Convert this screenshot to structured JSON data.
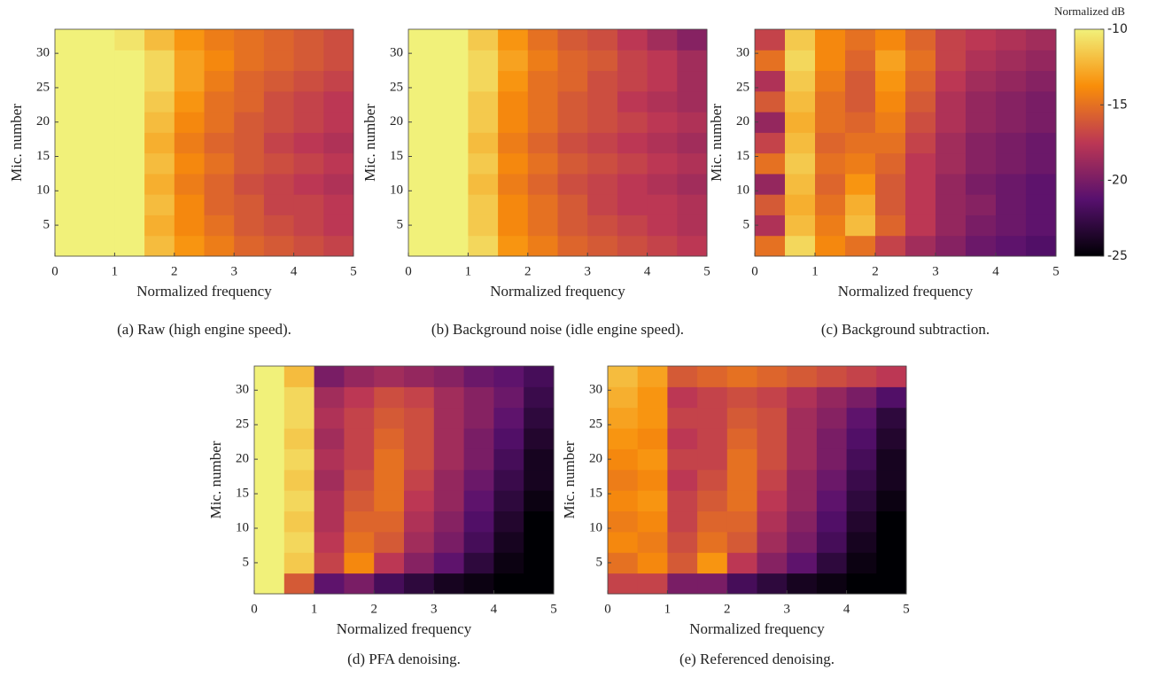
{
  "chart_data": [
    {
      "type": "heatmap",
      "caption": "(a)  Raw (high engine speed).",
      "xlabel": "Normalized frequency",
      "ylabel": "Mic. number",
      "xlim": [
        0,
        5
      ],
      "xticks": [
        0,
        1,
        2,
        3,
        4,
        5
      ],
      "ylim": [
        0.5,
        33.5
      ],
      "yticks": [
        5,
        10,
        15,
        20,
        25,
        30
      ],
      "xbins": [
        0,
        0.5,
        1,
        1.5,
        2,
        2.5,
        3,
        3.5,
        4,
        4.5,
        5
      ],
      "ybins": [
        0.5,
        3.5,
        6.5,
        9.5,
        12.5,
        15.5,
        18.5,
        21.5,
        24.5,
        27.5,
        30.5,
        33.5
      ],
      "z": [
        [
          -10,
          -10,
          -10,
          -12,
          -13.5,
          -14.5,
          -15.5,
          -16,
          -16.5,
          -17
        ],
        [
          -10,
          -10,
          -10,
          -12.5,
          -14,
          -15,
          -16,
          -16.5,
          -17,
          -17.5
        ],
        [
          -10,
          -10,
          -10,
          -12,
          -14,
          -15.5,
          -16,
          -17,
          -17,
          -17.5
        ],
        [
          -10,
          -10,
          -10,
          -12.5,
          -14.5,
          -15.5,
          -16.5,
          -17,
          -17.5,
          -18
        ],
        [
          -10,
          -10,
          -10,
          -12,
          -14,
          -15,
          -16,
          -16.5,
          -17,
          -17.5
        ],
        [
          -10,
          -10,
          -10,
          -12.5,
          -14.5,
          -15.5,
          -16,
          -17,
          -17.5,
          -18
        ],
        [
          -10,
          -10,
          -10,
          -12,
          -14,
          -15,
          -16,
          -16.5,
          -17,
          -17.5
        ],
        [
          -10,
          -10,
          -10,
          -11.5,
          -13.5,
          -15,
          -15.5,
          -16.5,
          -17,
          -17.5
        ],
        [
          -10,
          -10,
          -10,
          -11,
          -13,
          -14.5,
          -15.5,
          -16,
          -16.5,
          -17
        ],
        [
          -10,
          -10,
          -10,
          -11,
          -13,
          -14,
          -15,
          -15.5,
          -16,
          -16.5
        ],
        [
          -10,
          -10,
          -10.5,
          -12,
          -13.5,
          -14.5,
          -15,
          -15.5,
          -16,
          -16.5
        ]
      ]
    },
    {
      "type": "heatmap",
      "caption": "(b) Background noise (idle engine speed).",
      "xlabel": "Normalized frequency",
      "ylabel": "Mic. number",
      "xlim": [
        0,
        5
      ],
      "xticks": [
        0,
        1,
        2,
        3,
        4,
        5
      ],
      "ylim": [
        0.5,
        33.5
      ],
      "yticks": [
        5,
        10,
        15,
        20,
        25,
        30
      ],
      "xbins": [
        0,
        0.5,
        1,
        1.5,
        2,
        2.5,
        3,
        3.5,
        4,
        4.5,
        5
      ],
      "ybins": [
        0.5,
        3.5,
        6.5,
        9.5,
        12.5,
        15.5,
        18.5,
        21.5,
        24.5,
        27.5,
        30.5,
        33.5
      ],
      "z": [
        [
          -10,
          -10,
          -11,
          -13.5,
          -14.5,
          -15.5,
          -16,
          -16.5,
          -17,
          -17.5
        ],
        [
          -10,
          -10,
          -11.5,
          -14,
          -15,
          -16,
          -16.5,
          -17,
          -17.5,
          -18
        ],
        [
          -10,
          -10,
          -11.5,
          -14,
          -15,
          -16,
          -17,
          -17.5,
          -17.5,
          -18
        ],
        [
          -10,
          -10,
          -12,
          -14.5,
          -15.5,
          -16.5,
          -17,
          -17.5,
          -18,
          -18.5
        ],
        [
          -10,
          -10,
          -11.5,
          -14,
          -15,
          -16,
          -16.5,
          -17,
          -17.5,
          -18
        ],
        [
          -10,
          -10,
          -12,
          -14.5,
          -15.5,
          -16.5,
          -17,
          -17.5,
          -18,
          -18.5
        ],
        [
          -10,
          -10,
          -11.5,
          -14,
          -15,
          -16,
          -16.5,
          -17,
          -17.5,
          -18
        ],
        [
          -10,
          -10,
          -11.5,
          -14,
          -15,
          -16,
          -16.5,
          -17.5,
          -18,
          -18.5
        ],
        [
          -10,
          -10,
          -11,
          -13.5,
          -15,
          -15.5,
          -16.5,
          -17,
          -17.5,
          -18.5
        ],
        [
          -10,
          -10,
          -11,
          -13,
          -14.5,
          -15.5,
          -16,
          -17,
          -17.5,
          -18.5
        ],
        [
          -10,
          -10,
          -11.5,
          -13.5,
          -15,
          -16,
          -16.5,
          -17.5,
          -18.5,
          -19.5
        ]
      ]
    },
    {
      "type": "heatmap",
      "caption": "(c) Background subtraction.",
      "xlabel": "Normalized frequency",
      "ylabel": "Mic. number",
      "xlim": [
        0,
        5
      ],
      "xticks": [
        0,
        1,
        2,
        3,
        4,
        5
      ],
      "ylim": [
        0.5,
        33.5
      ],
      "yticks": [
        5,
        10,
        15,
        20,
        25,
        30
      ],
      "xbins": [
        0,
        0.5,
        1,
        1.5,
        2,
        2.5,
        3,
        3.5,
        4,
        4.5,
        5
      ],
      "ybins": [
        0.5,
        3.5,
        6.5,
        9.5,
        12.5,
        15.5,
        18.5,
        21.5,
        24.5,
        27.5,
        30.5,
        33.5
      ],
      "z": [
        [
          -15,
          -11,
          -14,
          -15,
          -17,
          -18.5,
          -19.5,
          -20.5,
          -21,
          -21.5
        ],
        [
          -18,
          -12,
          -14.5,
          -12,
          -15.5,
          -17.5,
          -19,
          -20,
          -20.5,
          -21
        ],
        [
          -16,
          -12.5,
          -15,
          -12.5,
          -16,
          -17.5,
          -19,
          -19.5,
          -20.5,
          -21
        ],
        [
          -19,
          -12,
          -15.5,
          -13.5,
          -16,
          -17.5,
          -19,
          -20,
          -20.5,
          -21
        ],
        [
          -15,
          -11.5,
          -15,
          -14.5,
          -15.5,
          -17.5,
          -18.5,
          -19.5,
          -20,
          -20.5
        ],
        [
          -17,
          -12,
          -15.5,
          -15,
          -15,
          -17,
          -18.5,
          -19.5,
          -20,
          -20.5
        ],
        [
          -19,
          -12.5,
          -15,
          -15.5,
          -14.5,
          -16.5,
          -18,
          -19,
          -19.5,
          -20
        ],
        [
          -16,
          -12,
          -15,
          -16,
          -14,
          -16,
          -18,
          -19,
          -19.5,
          -20
        ],
        [
          -18,
          -11.5,
          -14.5,
          -16,
          -13.5,
          -15.5,
          -17.5,
          -18.5,
          -19,
          -19.5
        ],
        [
          -15,
          -11,
          -14,
          -15.5,
          -13,
          -15,
          -17,
          -18,
          -18.5,
          -19
        ],
        [
          -17,
          -11.5,
          -14,
          -15,
          -14,
          -15.5,
          -17,
          -17.5,
          -18,
          -18.5
        ]
      ],
      "colorbar": {
        "label": "Normalized dB",
        "clim": [
          -25,
          -10
        ],
        "ticks": [
          -10,
          -15,
          -20,
          -25
        ]
      }
    },
    {
      "type": "heatmap",
      "caption": "(d) PFA denoising.",
      "xlabel": "Normalized frequency",
      "ylabel": "Mic. number",
      "xlim": [
        0,
        5
      ],
      "xticks": [
        0,
        1,
        2,
        3,
        4,
        5
      ],
      "ylim": [
        0.5,
        33.5
      ],
      "yticks": [
        5,
        10,
        15,
        20,
        25,
        30
      ],
      "xbins": [
        0,
        0.5,
        1,
        1.5,
        2,
        2.5,
        3,
        3.5,
        4,
        4.5,
        5
      ],
      "ybins": [
        0.5,
        3.5,
        6.5,
        9.5,
        12.5,
        15.5,
        18.5,
        21.5,
        24.5,
        27.5,
        30.5,
        33.5
      ],
      "z": [
        [
          -10,
          -16,
          -21,
          -20,
          -22,
          -23,
          -24,
          -24.5,
          -25,
          -25
        ],
        [
          -10,
          -11.5,
          -17,
          -14,
          -17.5,
          -19.5,
          -21,
          -23,
          -24.5,
          -25
        ],
        [
          -10,
          -11,
          -17.5,
          -15,
          -16,
          -18.5,
          -20,
          -22,
          -24,
          -25
        ],
        [
          -10,
          -11.5,
          -18,
          -15.5,
          -15.5,
          -18,
          -19.5,
          -21.5,
          -23.5,
          -25
        ],
        [
          -10,
          -11,
          -18,
          -16,
          -15,
          -17.5,
          -19,
          -21,
          -23,
          -24.5
        ],
        [
          -10,
          -11.5,
          -18.5,
          -16.5,
          -15,
          -17,
          -19,
          -20.5,
          -22.5,
          -24
        ],
        [
          -10,
          -11,
          -18,
          -17,
          -15,
          -16.5,
          -18.5,
          -20,
          -22,
          -24
        ],
        [
          -10,
          -11.5,
          -18.5,
          -17,
          -15.5,
          -16.5,
          -18.5,
          -20,
          -21.5,
          -23.5
        ],
        [
          -10,
          -11,
          -18,
          -17,
          -16,
          -16.5,
          -18.5,
          -19.5,
          -21,
          -23
        ],
        [
          -10,
          -11,
          -18.5,
          -17.5,
          -16.5,
          -17,
          -18.5,
          -19.5,
          -20.5,
          -22.5
        ],
        [
          -10,
          -12,
          -20,
          -19,
          -18.5,
          -19,
          -19.5,
          -20.5,
          -21,
          -22
        ]
      ]
    },
    {
      "type": "heatmap",
      "caption": "(e) Referenced denoising.",
      "xlabel": "Normalized frequency",
      "ylabel": "Mic. number",
      "xlim": [
        0,
        5
      ],
      "xticks": [
        0,
        1,
        2,
        3,
        4,
        5
      ],
      "ylim": [
        0.5,
        33.5
      ],
      "yticks": [
        5,
        10,
        15,
        20,
        25,
        30
      ],
      "xbins": [
        0,
        0.5,
        1,
        1.5,
        2,
        2.5,
        3,
        3.5,
        4,
        4.5,
        5
      ],
      "ybins": [
        0.5,
        3.5,
        6.5,
        9.5,
        12.5,
        15.5,
        18.5,
        21.5,
        24.5,
        27.5,
        30.5,
        33.5
      ],
      "z": [
        [
          -17,
          -17,
          -20,
          -20,
          -22,
          -23,
          -24,
          -24.5,
          -25,
          -25
        ],
        [
          -15,
          -14,
          -16,
          -13.5,
          -17.5,
          -19.5,
          -21,
          -23,
          -24.5,
          -25
        ],
        [
          -14,
          -14.5,
          -16.5,
          -15,
          -16,
          -18.5,
          -20,
          -22,
          -24,
          -25
        ],
        [
          -14.5,
          -14,
          -17,
          -15.5,
          -15.5,
          -18,
          -19.5,
          -21.5,
          -23.5,
          -25
        ],
        [
          -14,
          -13.5,
          -17,
          -16,
          -15,
          -17.5,
          -19,
          -21,
          -23,
          -24.5
        ],
        [
          -14.5,
          -14,
          -17.5,
          -16.5,
          -15,
          -17,
          -19,
          -20.5,
          -22.5,
          -24
        ],
        [
          -14,
          -13.5,
          -17,
          -17,
          -15,
          -16.5,
          -18.5,
          -20,
          -22,
          -24
        ],
        [
          -13.5,
          -14,
          -17.5,
          -17,
          -15.5,
          -16.5,
          -18.5,
          -20,
          -21.5,
          -23.5
        ],
        [
          -13,
          -13.5,
          -17,
          -17,
          -16,
          -16.5,
          -18.5,
          -19.5,
          -21,
          -23
        ],
        [
          -12.5,
          -13.5,
          -17.5,
          -17,
          -16.5,
          -17,
          -18,
          -19,
          -20,
          -21.5
        ],
        [
          -12,
          -13,
          -16,
          -15.5,
          -15,
          -15.5,
          -16,
          -16.5,
          -17,
          -17.5
        ]
      ]
    }
  ]
}
